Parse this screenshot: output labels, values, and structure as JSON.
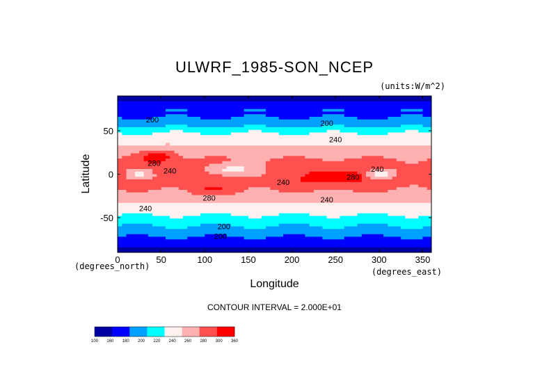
{
  "title": "ULWRF_1985-SON_NCEP",
  "units_label": "(units:W/m^2)",
  "xlabel": "Longitude",
  "ylabel": "Latitude",
  "x_unit_left": "(degrees_north)",
  "x_unit_right": "(degrees_east)",
  "contour_interval_text": "CONTOUR INTERVAL = 2.000E+01",
  "chart_data": {
    "type": "heatmap",
    "title": "ULWRF_1985-SON_NCEP",
    "xlabel": "Longitude",
    "ylabel": "Latitude",
    "xlim": [
      0,
      360
    ],
    "ylim": [
      -90,
      90
    ],
    "x_ticks": [
      0,
      50,
      100,
      150,
      200,
      250,
      300,
      350
    ],
    "y_ticks": [
      50,
      0,
      -50
    ],
    "levels": [
      100,
      160,
      180,
      200,
      220,
      240,
      260,
      280,
      300,
      360
    ],
    "level_colors": [
      "#0000a0",
      "#0000ff",
      "#00a0ff",
      "#00ffff",
      "#fff0f0",
      "#ffb0b0",
      "#ff5050",
      "#ff0000"
    ],
    "contour_labels": [
      {
        "text": "200",
        "lon": 40,
        "lat": 62
      },
      {
        "text": "200",
        "lon": 240,
        "lat": 58
      },
      {
        "text": "240",
        "lon": 250,
        "lat": 39
      },
      {
        "text": "280",
        "lon": 42,
        "lat": 12
      },
      {
        "text": "240",
        "lon": 60,
        "lat": 3
      },
      {
        "text": "240",
        "lon": 190,
        "lat": -10
      },
      {
        "text": "280",
        "lon": 270,
        "lat": -4
      },
      {
        "text": "240",
        "lon": 298,
        "lat": 5
      },
      {
        "text": "280",
        "lon": 105,
        "lat": -28
      },
      {
        "text": "240",
        "lon": 240,
        "lat": -30
      },
      {
        "text": "240",
        "lon": 32,
        "lat": -40
      },
      {
        "text": "200",
        "lon": 122,
        "lat": -61
      },
      {
        "text": "200",
        "lon": 118,
        "lat": -72
      }
    ],
    "contour_interval": 20
  }
}
